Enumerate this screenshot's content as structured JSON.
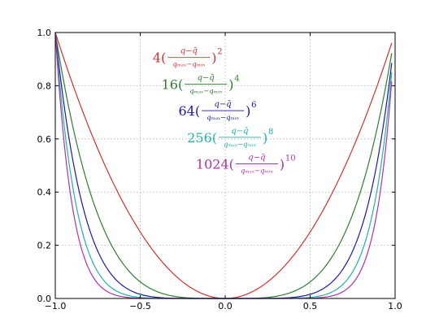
{
  "chart_data": {
    "type": "line",
    "xlim": [
      -1.0,
      1.0
    ],
    "ylim": [
      0.0,
      1.0
    ],
    "grid": true,
    "x_ticks": [
      -1.0,
      -0.5,
      0.0,
      0.5,
      1.0
    ],
    "x_tick_labels": [
      "−1.0",
      "−0.5",
      "0.0",
      "0.5",
      "1.0"
    ],
    "y_ticks": [
      0.0,
      0.2,
      0.4,
      0.6,
      0.8,
      1.0
    ],
    "y_tick_labels": [
      "0.0",
      "0.2",
      "0.4",
      "0.6",
      "0.8",
      "1.0"
    ],
    "series": [
      {
        "coef": "4",
        "exponent": 2,
        "color": "#cc3333",
        "x": [
          -1.0,
          -0.75,
          -0.5,
          -0.25,
          0.0,
          0.25,
          0.5,
          0.75,
          0.98
        ],
        "y": [
          1.0,
          0.5625,
          0.25,
          0.0625,
          0.0,
          0.0625,
          0.25,
          0.5625,
          0.96
        ]
      },
      {
        "coef": "16",
        "exponent": 4,
        "color": "#2e7d32",
        "x": [
          -1.0,
          -0.75,
          -0.5,
          -0.25,
          0.0,
          0.25,
          0.5,
          0.75,
          0.98
        ],
        "y": [
          1.0,
          0.316,
          0.0625,
          0.0039,
          0.0,
          0.0039,
          0.0625,
          0.316,
          0.922
        ]
      },
      {
        "coef": "64",
        "exponent": 6,
        "color": "#1a1a99",
        "x": [
          -1.0,
          -0.75,
          -0.5,
          -0.25,
          0.0,
          0.25,
          0.5,
          0.75,
          0.98
        ],
        "y": [
          1.0,
          0.178,
          0.0156,
          0.0002,
          0.0,
          0.0002,
          0.0156,
          0.178,
          0.886
        ]
      },
      {
        "coef": "256",
        "exponent": 8,
        "color": "#20b2aa",
        "x": [
          -1.0,
          -0.75,
          -0.5,
          -0.25,
          0.0,
          0.25,
          0.5,
          0.75,
          0.98
        ],
        "y": [
          1.0,
          0.1,
          0.0039,
          0.0,
          0.0,
          0.0,
          0.0039,
          0.1,
          0.851
        ]
      },
      {
        "coef": "1024",
        "exponent": 10,
        "color": "#aa33aa",
        "x": [
          -1.0,
          -0.75,
          -0.5,
          -0.25,
          0.0,
          0.25,
          0.5,
          0.75,
          0.98
        ],
        "y": [
          1.0,
          0.056,
          0.001,
          0.0,
          0.0,
          0.0,
          0.001,
          0.056,
          0.817
        ]
      }
    ],
    "annotations": [
      {
        "coef": "4",
        "numerator": "q−q̄",
        "denominator": "qₘₐₓ−qₘᵢₙ",
        "exponent": "2",
        "color": "#cc3333",
        "x": -0.3,
        "y": 0.9
      },
      {
        "coef": "16",
        "numerator": "q−q̄",
        "denominator": "qₘₐₓ−qₘᵢₙ",
        "exponent": "4",
        "color": "#2e7d32",
        "x": -0.2,
        "y": 0.8
      },
      {
        "coef": "64",
        "numerator": "q−q̄",
        "denominator": "qₘₐₓ−qₘᵢₙ",
        "exponent": "6",
        "color": "#1a1a99",
        "x": -0.1,
        "y": 0.7
      },
      {
        "coef": "256",
        "numerator": "q−q̄",
        "denominator": "qₘₐₓ−qₘᵢₙ",
        "exponent": "8",
        "color": "#20b2aa",
        "x": 0.0,
        "y": 0.6
      },
      {
        "coef": "1024",
        "numerator": "q−q̄",
        "denominator": "qₘₐₓ−qₘᵢₙ",
        "exponent": "10",
        "color": "#aa33aa",
        "x": 0.1,
        "y": 0.5
      }
    ]
  }
}
